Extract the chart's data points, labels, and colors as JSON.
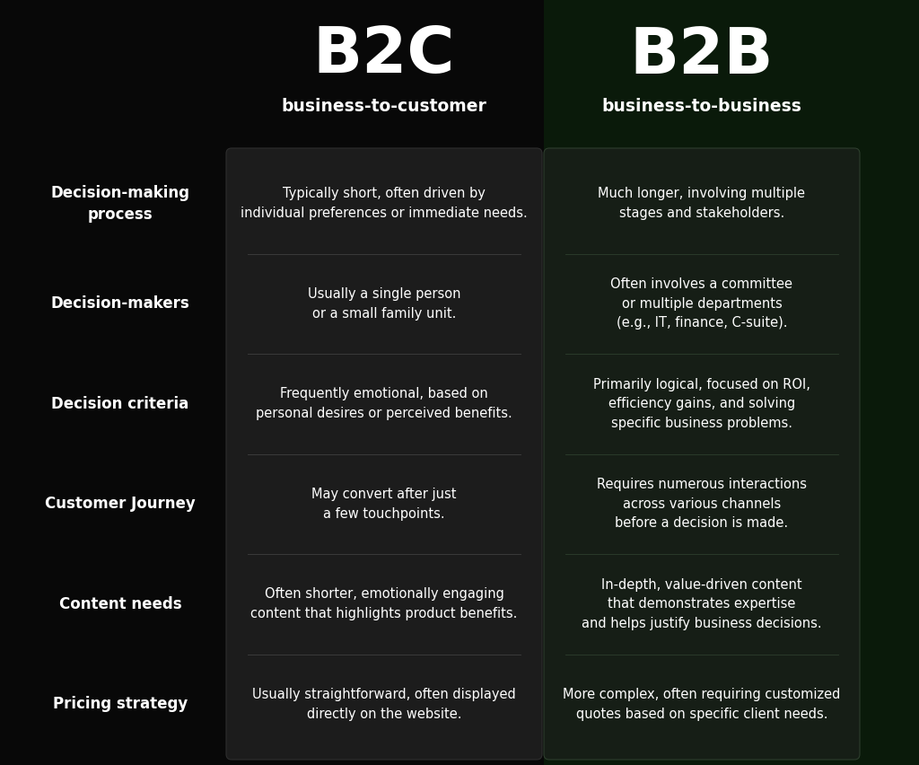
{
  "bg_color": "#080808",
  "panel_color": "#1c1c1c",
  "b2b_bg_color": "#0a1a0a",
  "b2b_panel_color": "#161e16",
  "text_color": "#ffffff",
  "divider_color_b2c": "#3a3a3a",
  "divider_color_b2b": "#2a3a2a",
  "b2c_title": "B2C",
  "b2c_subtitle": "business-to-customer",
  "b2b_title": "B2B",
  "b2b_subtitle": "business-to-business",
  "rows": [
    {
      "label": "Decision-making\nprocess",
      "b2c": "Typically short, often driven by\nindividual preferences or immediate needs.",
      "b2b": "Much longer, involving multiple\nstages and stakeholders."
    },
    {
      "label": "Decision-makers",
      "b2c": "Usually a single person\nor a small family unit.",
      "b2b": "Often involves a committee\nor multiple departments\n(e.g., IT, finance, C-suite)."
    },
    {
      "label": "Decision criteria",
      "b2c": "Frequently emotional, based on\npersonal desires or perceived benefits.",
      "b2b": "Primarily logical, focused on ROI,\nefficiency gains, and solving\nspecific business problems."
    },
    {
      "label": "Customer Journey",
      "b2c": "May convert after just\na few touchpoints.",
      "b2b": "Requires numerous interactions\nacross various channels\nbefore a decision is made."
    },
    {
      "label": "Content needs",
      "b2c": "Often shorter, emotionally engaging\ncontent that highlights product benefits.",
      "b2b": "In-depth, value-driven content\nthat demonstrates expertise\nand helps justify business decisions."
    },
    {
      "label": "Pricing strategy",
      "b2c": "Usually straightforward, often displayed\ndirectly on the website.",
      "b2b": "More complex, often requiring customized\nquotes based on specific client needs."
    }
  ]
}
